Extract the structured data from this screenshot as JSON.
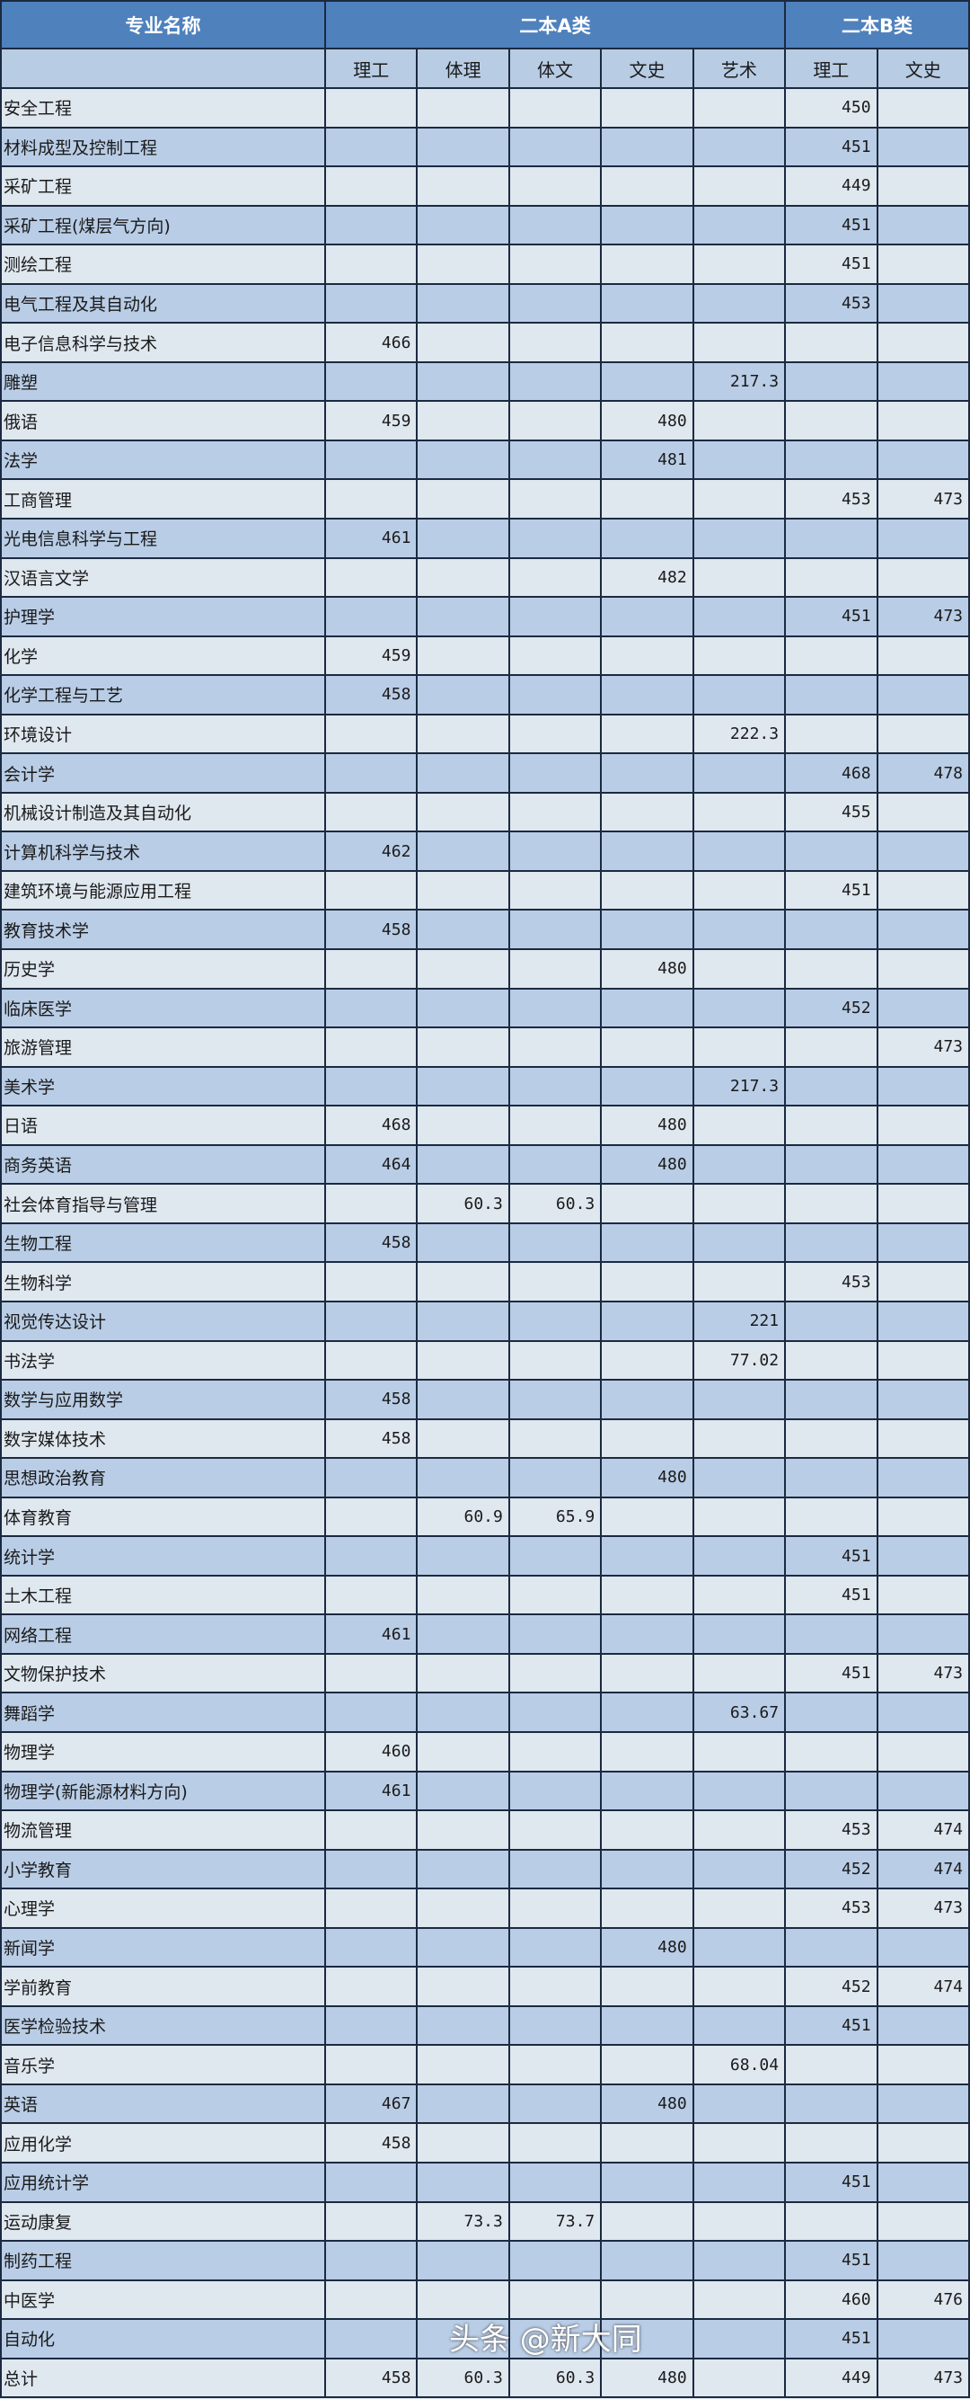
{
  "header": {
    "major": "专业名称",
    "groupA": "二本A类",
    "groupB": "二本B类",
    "sub": [
      "理工",
      "体理",
      "体文",
      "文史",
      "艺术",
      "理工",
      "文史"
    ]
  },
  "rows": [
    [
      "安全工程",
      "",
      "",
      "",
      "",
      "",
      "450",
      ""
    ],
    [
      "材料成型及控制工程",
      "",
      "",
      "",
      "",
      "",
      "451",
      ""
    ],
    [
      "采矿工程",
      "",
      "",
      "",
      "",
      "",
      "449",
      ""
    ],
    [
      "采矿工程(煤层气方向)",
      "",
      "",
      "",
      "",
      "",
      "451",
      ""
    ],
    [
      "测绘工程",
      "",
      "",
      "",
      "",
      "",
      "451",
      ""
    ],
    [
      "电气工程及其自动化",
      "",
      "",
      "",
      "",
      "",
      "453",
      ""
    ],
    [
      "电子信息科学与技术",
      "466",
      "",
      "",
      "",
      "",
      "",
      ""
    ],
    [
      "雕塑",
      "",
      "",
      "",
      "",
      "217.3",
      "",
      ""
    ],
    [
      "俄语",
      "459",
      "",
      "",
      "480",
      "",
      "",
      ""
    ],
    [
      "法学",
      "",
      "",
      "",
      "481",
      "",
      "",
      ""
    ],
    [
      "工商管理",
      "",
      "",
      "",
      "",
      "",
      "453",
      "473"
    ],
    [
      "光电信息科学与工程",
      "461",
      "",
      "",
      "",
      "",
      "",
      ""
    ],
    [
      "汉语言文学",
      "",
      "",
      "",
      "482",
      "",
      "",
      ""
    ],
    [
      "护理学",
      "",
      "",
      "",
      "",
      "",
      "451",
      "473"
    ],
    [
      "化学",
      "459",
      "",
      "",
      "",
      "",
      "",
      ""
    ],
    [
      "化学工程与工艺",
      "458",
      "",
      "",
      "",
      "",
      "",
      ""
    ],
    [
      "环境设计",
      "",
      "",
      "",
      "",
      "222.3",
      "",
      ""
    ],
    [
      "会计学",
      "",
      "",
      "",
      "",
      "",
      "468",
      "478"
    ],
    [
      "机械设计制造及其自动化",
      "",
      "",
      "",
      "",
      "",
      "455",
      ""
    ],
    [
      "计算机科学与技术",
      "462",
      "",
      "",
      "",
      "",
      "",
      ""
    ],
    [
      "建筑环境与能源应用工程",
      "",
      "",
      "",
      "",
      "",
      "451",
      ""
    ],
    [
      "教育技术学",
      "458",
      "",
      "",
      "",
      "",
      "",
      ""
    ],
    [
      "历史学",
      "",
      "",
      "",
      "480",
      "",
      "",
      ""
    ],
    [
      "临床医学",
      "",
      "",
      "",
      "",
      "",
      "452",
      ""
    ],
    [
      "旅游管理",
      "",
      "",
      "",
      "",
      "",
      "",
      "473"
    ],
    [
      "美术学",
      "",
      "",
      "",
      "",
      "217.3",
      "",
      ""
    ],
    [
      "日语",
      "468",
      "",
      "",
      "480",
      "",
      "",
      ""
    ],
    [
      "商务英语",
      "464",
      "",
      "",
      "480",
      "",
      "",
      ""
    ],
    [
      "社会体育指导与管理",
      "",
      "60.3",
      "60.3",
      "",
      "",
      "",
      ""
    ],
    [
      "生物工程",
      "458",
      "",
      "",
      "",
      "",
      "",
      ""
    ],
    [
      "生物科学",
      "",
      "",
      "",
      "",
      "",
      "453",
      ""
    ],
    [
      "视觉传达设计",
      "",
      "",
      "",
      "",
      "221",
      "",
      ""
    ],
    [
      "书法学",
      "",
      "",
      "",
      "",
      "77.02",
      "",
      ""
    ],
    [
      "数学与应用数学",
      "458",
      "",
      "",
      "",
      "",
      "",
      ""
    ],
    [
      "数字媒体技术",
      "458",
      "",
      "",
      "",
      "",
      "",
      ""
    ],
    [
      "思想政治教育",
      "",
      "",
      "",
      "480",
      "",
      "",
      ""
    ],
    [
      "体育教育",
      "",
      "60.9",
      "65.9",
      "",
      "",
      "",
      ""
    ],
    [
      "统计学",
      "",
      "",
      "",
      "",
      "",
      "451",
      ""
    ],
    [
      "土木工程",
      "",
      "",
      "",
      "",
      "",
      "451",
      ""
    ],
    [
      "网络工程",
      "461",
      "",
      "",
      "",
      "",
      "",
      ""
    ],
    [
      "文物保护技术",
      "",
      "",
      "",
      "",
      "",
      "451",
      "473"
    ],
    [
      "舞蹈学",
      "",
      "",
      "",
      "",
      "63.67",
      "",
      ""
    ],
    [
      "物理学",
      "460",
      "",
      "",
      "",
      "",
      "",
      ""
    ],
    [
      "物理学(新能源材料方向)",
      "461",
      "",
      "",
      "",
      "",
      "",
      ""
    ],
    [
      "物流管理",
      "",
      "",
      "",
      "",
      "",
      "453",
      "474"
    ],
    [
      "小学教育",
      "",
      "",
      "",
      "",
      "",
      "452",
      "474"
    ],
    [
      "心理学",
      "",
      "",
      "",
      "",
      "",
      "453",
      "473"
    ],
    [
      "新闻学",
      "",
      "",
      "",
      "480",
      "",
      "",
      ""
    ],
    [
      "学前教育",
      "",
      "",
      "",
      "",
      "",
      "452",
      "474"
    ],
    [
      "医学检验技术",
      "",
      "",
      "",
      "",
      "",
      "451",
      ""
    ],
    [
      "音乐学",
      "",
      "",
      "",
      "",
      "68.04",
      "",
      ""
    ],
    [
      "英语",
      "467",
      "",
      "",
      "480",
      "",
      "",
      ""
    ],
    [
      "应用化学",
      "458",
      "",
      "",
      "",
      "",
      "",
      ""
    ],
    [
      "应用统计学",
      "",
      "",
      "",
      "",
      "",
      "451",
      ""
    ],
    [
      "运动康复",
      "",
      "73.3",
      "73.7",
      "",
      "",
      "",
      ""
    ],
    [
      "制药工程",
      "",
      "",
      "",
      "",
      "",
      "451",
      ""
    ],
    [
      "中医学",
      "",
      "",
      "",
      "",
      "",
      "460",
      "476"
    ],
    [
      "自动化",
      "",
      "",
      "",
      "",
      "",
      "451",
      ""
    ],
    [
      "总计",
      "458",
      "60.3",
      "60.3",
      "480",
      "",
      "449",
      "473"
    ]
  ],
  "watermark": "头条 @新大同"
}
